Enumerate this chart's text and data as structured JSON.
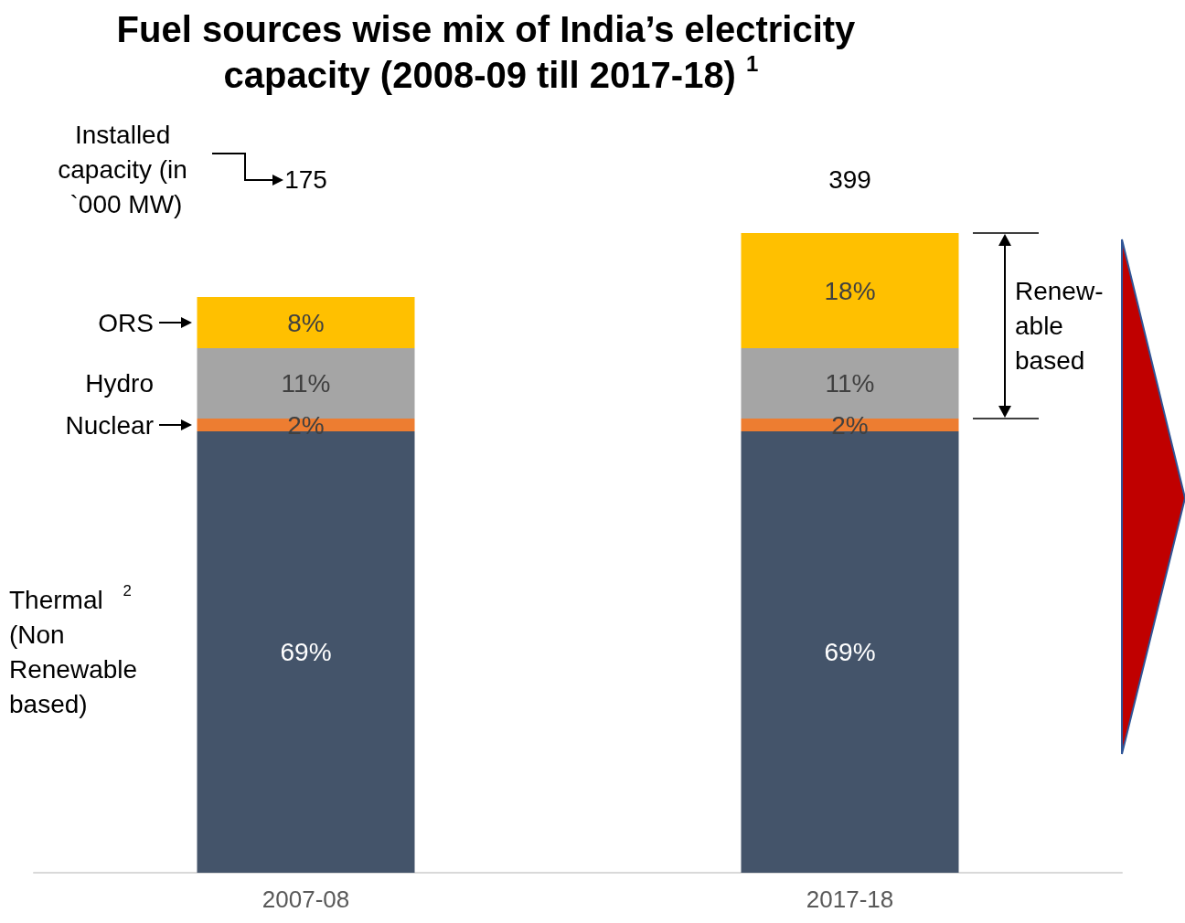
{
  "chart_data": {
    "type": "bar",
    "stacked": true,
    "title": "Fuel sources wise mix of India’s electricity capacity (2008-09 till 2017-18) $^{1}$",
    "categories": [
      "2007-08",
      "2017-18"
    ],
    "series": [
      {
        "name": "Thermal $^{2}$ (Non Renewable based)",
        "color": "#44546a",
        "values": [
          69,
          69
        ],
        "value_labels": [
          "69%",
          "69%"
        ]
      },
      {
        "name": "Nuclear",
        "color": "#ed7d31",
        "values": [
          2,
          2
        ],
        "value_labels": [
          "2%",
          "2%"
        ]
      },
      {
        "name": "Hydro",
        "color": "#a5a5a5",
        "values": [
          11,
          11
        ],
        "value_labels": [
          "11%",
          "11%"
        ]
      },
      {
        "name": "ORS",
        "color": "#ffc000",
        "values": [
          8,
          18
        ],
        "value_labels": [
          "8%",
          "18%"
        ]
      }
    ],
    "ylim": [
      0,
      100
    ],
    "tick_labels": "x",
    "legend": "left",
    "annotations": [
      "Installed capacity (in `000 MW)",
      "Renew-able based",
      "175",
      "399"
    ]
  }
}
